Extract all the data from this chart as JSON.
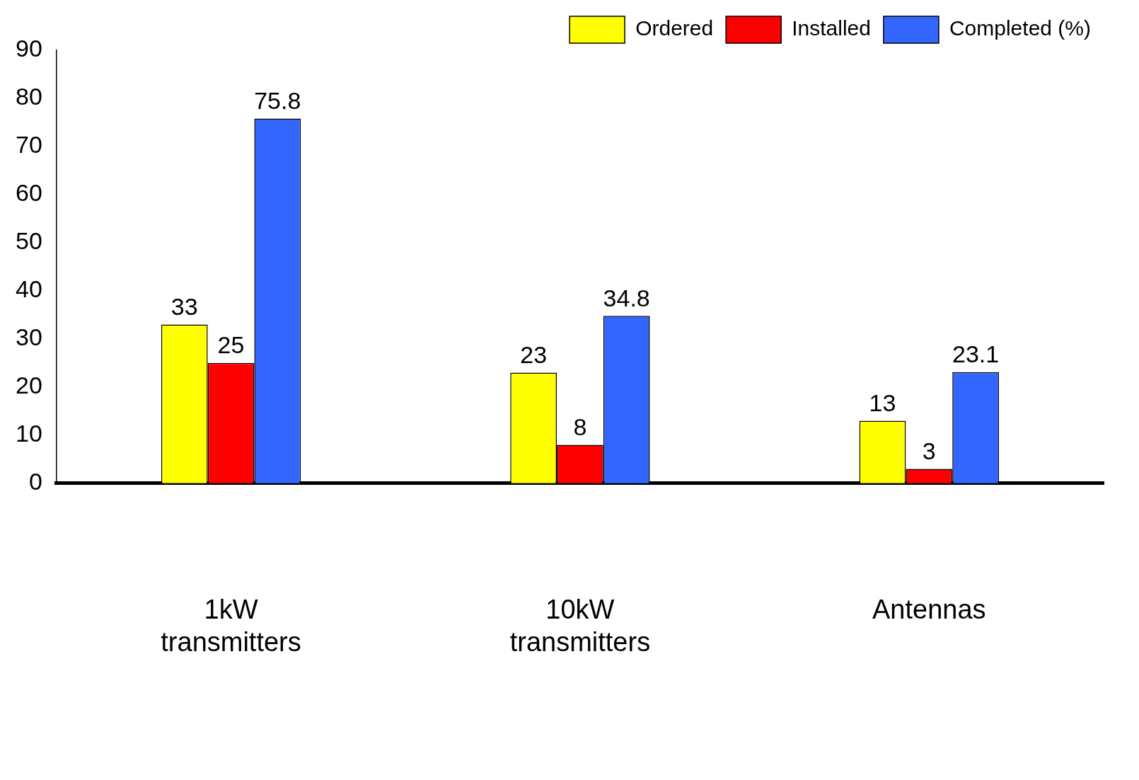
{
  "chart_data": {
    "type": "bar",
    "categories": [
      "1kW transmitters",
      "10kW transmitters",
      "Antennas"
    ],
    "series": [
      {
        "name": "Ordered",
        "color": "#ffff00",
        "values": [
          33,
          23,
          13
        ]
      },
      {
        "name": "Installed",
        "color": "#ff0000",
        "values": [
          25,
          8,
          3
        ]
      },
      {
        "name": "Completed (%)",
        "color": "#3366ff",
        "values": [
          75.8,
          34.8,
          23.1
        ]
      }
    ],
    "ylim": [
      0,
      90
    ],
    "yticks": [
      0,
      10,
      20,
      30,
      40,
      50,
      60,
      70,
      80,
      90
    ],
    "grid": false,
    "legend": "top right",
    "data_labels": true
  }
}
